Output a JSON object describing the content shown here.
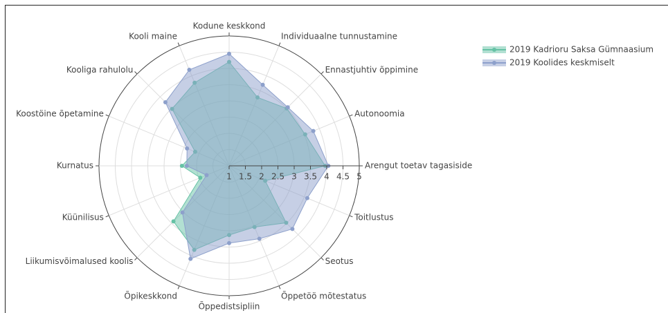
{
  "chart_data": {
    "type": "radar",
    "categories": [
      "Arengut toetav tagasiside",
      "Autonoomia",
      "Ennastjuhtiv õppimine",
      "Individuaalne tunnustamine",
      "Kodune keskkond",
      "Kooli maine",
      "Kooliga rahulolu",
      "Koostöine õpetamine",
      "Kurnatus",
      "Küünilisus",
      "Liikumisvõimalused koolis",
      "Õpikeskkond",
      "Õppedistsipliin",
      "Õppetöö mõtestatus",
      "Seotus",
      "Toitlustus"
    ],
    "series": [
      {
        "name": "2019 Kadrioru Saksa Gümnaasium",
        "color": "#66c2a5",
        "values": [
          3.95,
          3.53,
          3.5,
          3.28,
          4.2,
          3.77,
          3.48,
          2.13,
          2.45,
          1.96,
          3.42,
          3.8,
          3.13,
          3.04,
          3.48,
          2.2
        ]
      },
      {
        "name": "2019 Koolides keskmiselt",
        "color": "#8da0cb",
        "values": [
          4.05,
          3.8,
          3.55,
          3.7,
          4.45,
          4.2,
          3.77,
          2.4,
          2.3,
          1.75,
          3.03,
          4.1,
          3.38,
          3.43,
          3.75,
          3.6
        ]
      }
    ],
    "rlim": [
      1,
      5
    ],
    "rticks": [
      1,
      1.5,
      2,
      2.5,
      3,
      3.5,
      4,
      4.5,
      5
    ],
    "legend": "top-right",
    "grid": true
  }
}
